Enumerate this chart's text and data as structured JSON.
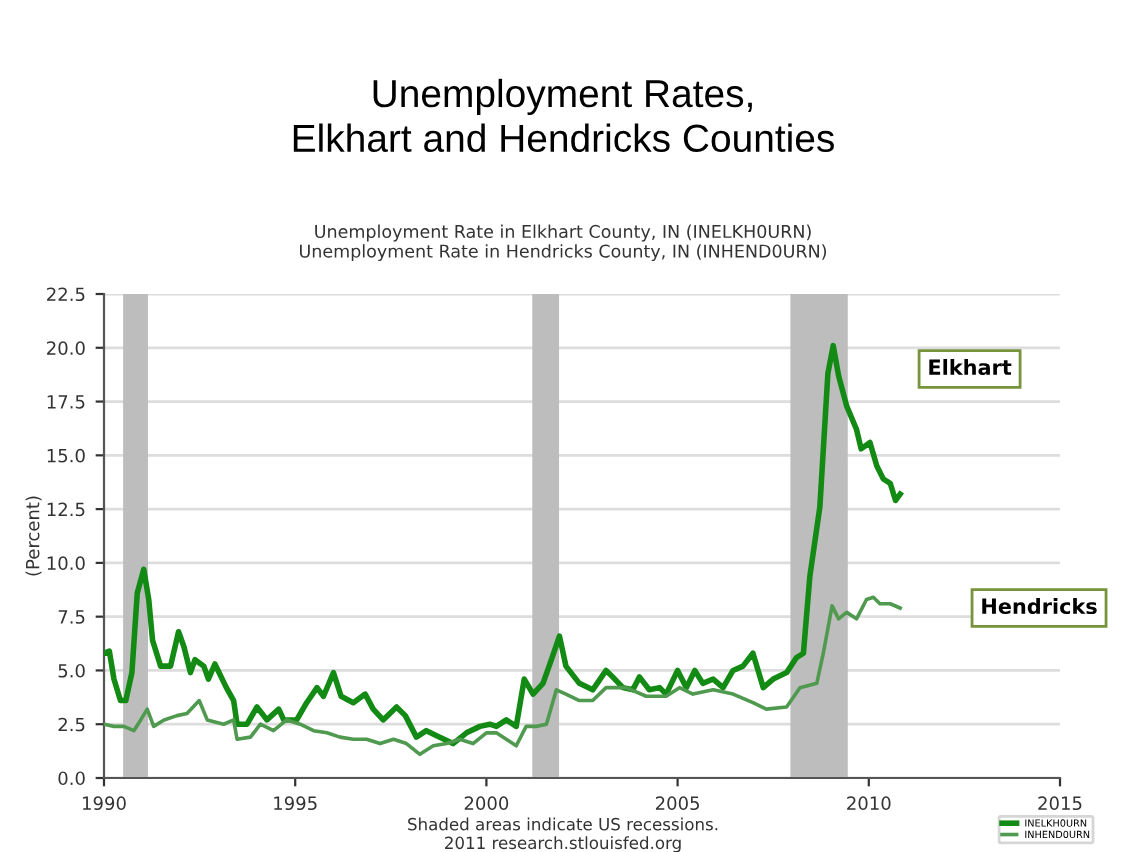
{
  "chart_data": {
    "type": "line",
    "title": "Unemployment Rates,\nElkhart and Hendricks Counties",
    "subtitle": "Unemployment Rate in Elkhart County, IN (INELKH0URN)\nUnemployment Rate in Hendricks County, IN (INHEND0URN)",
    "ylabel": "(Percent)",
    "series": [
      {
        "name": "INELKH0URN",
        "color": "#138a13",
        "x": [
          1990.0,
          1990.14,
          1990.26,
          1990.43,
          1990.57,
          1990.73,
          1990.87,
          1991.04,
          1991.17,
          1991.27,
          1991.48,
          1991.74,
          1991.95,
          1992.09,
          1992.26,
          1992.38,
          1992.61,
          1992.73,
          1992.9,
          1993.2,
          1993.39,
          1993.48,
          1993.74,
          1994.0,
          1994.26,
          1994.57,
          1994.7,
          1995.04,
          1995.3,
          1995.57,
          1995.74,
          1996.0,
          1996.2,
          1996.52,
          1996.83,
          1997.04,
          1997.3,
          1997.65,
          1997.88,
          1998.17,
          1998.43,
          1998.78,
          1999.13,
          1999.48,
          1999.83,
          2000.09,
          2000.26,
          2000.52,
          2000.78,
          2000.99,
          2001.22,
          2001.48,
          2001.7,
          2001.91,
          2002.08,
          2002.43,
          2002.78,
          2003.13,
          2003.3,
          2003.57,
          2003.83,
          2004.0,
          2004.26,
          2004.53,
          2004.7,
          2005.0,
          2005.23,
          2005.45,
          2005.66,
          2005.93,
          2006.19,
          2006.45,
          2006.71,
          2006.97,
          2007.24,
          2007.5,
          2007.85,
          2008.11,
          2008.29,
          2008.46,
          2008.72,
          2008.93,
          2009.07,
          2009.21,
          2009.42,
          2009.68,
          2009.8,
          2010.03,
          2010.21,
          2010.38,
          2010.56,
          2010.7,
          2010.82
        ],
        "values": [
          5.8,
          5.9,
          4.6,
          3.6,
          3.6,
          4.9,
          8.6,
          9.7,
          8.3,
          6.4,
          5.2,
          5.2,
          6.8,
          6.1,
          4.9,
          5.5,
          5.2,
          4.6,
          5.3,
          4.2,
          3.6,
          2.5,
          2.5,
          3.3,
          2.7,
          3.2,
          2.7,
          2.7,
          3.5,
          4.2,
          3.8,
          4.9,
          3.8,
          3.5,
          3.9,
          3.2,
          2.7,
          3.3,
          2.9,
          1.9,
          2.2,
          1.9,
          1.6,
          2.1,
          2.4,
          2.5,
          2.4,
          2.7,
          2.4,
          4.6,
          3.9,
          4.4,
          5.5,
          6.6,
          5.2,
          4.4,
          4.1,
          5.0,
          4.7,
          4.2,
          4.1,
          4.7,
          4.1,
          4.2,
          3.9,
          5.0,
          4.2,
          5.0,
          4.4,
          4.6,
          4.2,
          5.0,
          5.2,
          5.8,
          4.2,
          4.6,
          4.9,
          5.6,
          5.8,
          9.4,
          12.6,
          18.8,
          20.1,
          18.7,
          17.3,
          16.2,
          15.3,
          15.6,
          14.5,
          13.9,
          13.7,
          12.9,
          13.2
        ]
      },
      {
        "name": "INHEND0URN",
        "color": "#4f9a4f",
        "x": [
          1990.0,
          1990.26,
          1990.52,
          1990.78,
          1990.96,
          1991.13,
          1991.3,
          1991.57,
          1991.91,
          1992.17,
          1992.49,
          1992.7,
          1993.13,
          1993.39,
          1993.48,
          1993.83,
          1994.09,
          1994.43,
          1994.78,
          1995.13,
          1995.48,
          1995.83,
          1996.17,
          1996.52,
          1996.87,
          1997.22,
          1997.57,
          1997.91,
          1998.26,
          1998.61,
          1998.96,
          1999.3,
          1999.65,
          2000.0,
          2000.26,
          2000.52,
          2000.78,
          2001.04,
          2001.3,
          2001.57,
          2001.83,
          2002.08,
          2002.43,
          2002.78,
          2003.13,
          2003.65,
          2004.18,
          2004.7,
          2005.05,
          2005.4,
          2005.93,
          2006.45,
          2006.97,
          2007.32,
          2007.85,
          2008.2,
          2008.64,
          2008.81,
          2009.04,
          2009.21,
          2009.42,
          2009.68,
          2009.94,
          2010.12,
          2010.29,
          2010.56,
          2010.82
        ],
        "values": [
          2.5,
          2.4,
          2.4,
          2.2,
          2.7,
          3.2,
          2.4,
          2.7,
          2.9,
          3.0,
          3.6,
          2.7,
          2.5,
          2.7,
          1.8,
          1.9,
          2.5,
          2.2,
          2.7,
          2.5,
          2.2,
          2.1,
          1.9,
          1.8,
          1.8,
          1.6,
          1.8,
          1.6,
          1.1,
          1.5,
          1.6,
          1.8,
          1.6,
          2.1,
          2.1,
          1.8,
          1.5,
          2.4,
          2.4,
          2.5,
          4.1,
          3.9,
          3.6,
          3.6,
          4.2,
          4.2,
          3.8,
          3.8,
          4.2,
          3.9,
          4.1,
          3.9,
          3.5,
          3.2,
          3.3,
          4.2,
          4.4,
          5.8,
          8.0,
          7.4,
          7.7,
          7.4,
          8.3,
          8.4,
          8.1,
          8.1,
          7.9
        ]
      }
    ],
    "xlim": [
      1990,
      2015
    ],
    "xticks": [
      1990,
      1995,
      2000,
      2005,
      2010,
      2015
    ],
    "ylim": [
      0,
      22.5
    ],
    "yticks": [
      {
        "value": 0,
        "label": "0.0"
      },
      {
        "value": 2.5,
        "label": "2.5"
      },
      {
        "value": 5,
        "label": "5.0"
      },
      {
        "value": 7.5,
        "label": "7.5"
      },
      {
        "value": 10,
        "label": "10.0"
      },
      {
        "value": 12.5,
        "label": "12.5"
      },
      {
        "value": 15,
        "label": "15.0"
      },
      {
        "value": 17.5,
        "label": "17.5"
      },
      {
        "value": 20,
        "label": "20.0"
      },
      {
        "value": 22.5,
        "label": "22.5"
      }
    ],
    "bands": [
      {
        "axis": "x",
        "from": 1990.5,
        "to": 1991.15,
        "color": "#bdbdbd"
      },
      {
        "axis": "x",
        "from": 2001.2,
        "to": 2001.9,
        "color": "#bdbdbd"
      },
      {
        "axis": "x",
        "from": 2007.95,
        "to": 2009.45,
        "color": "#bdbdbd"
      }
    ],
    "annotations": [
      "Elkhart",
      "Hendricks",
      "Shaded areas indicate US recessions.\n2011 research.stlouisfed.org"
    ],
    "grid": "y",
    "legend": "bottom right",
    "line_style": "solid",
    "marker": "none"
  }
}
